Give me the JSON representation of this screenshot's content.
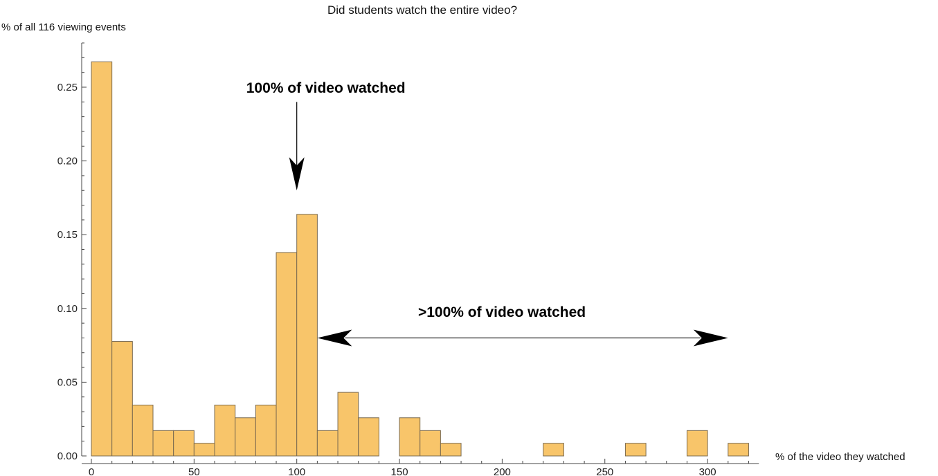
{
  "chart_data": {
    "type": "bar",
    "title": "Did students watch the entire video?",
    "xlabel": "% of the video they watched",
    "ylabel": "% of all 116 viewing events",
    "xlim": [
      -5,
      325
    ],
    "ylim": [
      0,
      0.28
    ],
    "x_ticks": [
      0,
      50,
      100,
      150,
      200,
      250,
      300
    ],
    "y_ticks": [
      0.0,
      0.05,
      0.1,
      0.15,
      0.2,
      0.25
    ],
    "y_tick_labels": [
      "0.00",
      "0.05",
      "0.10",
      "0.15",
      "0.20",
      "0.25"
    ],
    "grid": false,
    "bar_color": "#F8C56A",
    "bar_edge_color": "#7a6a50",
    "bin_width": 10,
    "bins": [
      {
        "start": 0,
        "value": 0.2672
      },
      {
        "start": 10,
        "value": 0.0776
      },
      {
        "start": 20,
        "value": 0.0345
      },
      {
        "start": 30,
        "value": 0.0172
      },
      {
        "start": 40,
        "value": 0.0172
      },
      {
        "start": 50,
        "value": 0.0086
      },
      {
        "start": 60,
        "value": 0.0345
      },
      {
        "start": 70,
        "value": 0.0259
      },
      {
        "start": 80,
        "value": 0.0345
      },
      {
        "start": 90,
        "value": 0.1379
      },
      {
        "start": 100,
        "value": 0.1638
      },
      {
        "start": 110,
        "value": 0.0172
      },
      {
        "start": 120,
        "value": 0.0431
      },
      {
        "start": 130,
        "value": 0.0259
      },
      {
        "start": 150,
        "value": 0.0259
      },
      {
        "start": 160,
        "value": 0.0172
      },
      {
        "start": 170,
        "value": 0.0086
      },
      {
        "start": 220,
        "value": 0.0086
      },
      {
        "start": 260,
        "value": 0.0086
      },
      {
        "start": 290,
        "value": 0.0172
      },
      {
        "start": 310,
        "value": 0.0086
      }
    ],
    "annotations": [
      {
        "text": "100% of video watched",
        "arrow": "down",
        "x": 100,
        "y_from": 0.24,
        "y_to": 0.18,
        "text_y": 0.25
      },
      {
        "text": ">100% of video watched",
        "arrow": "both",
        "x_from": 110,
        "x_to": 310,
        "y": 0.08,
        "text_y": 0.098
      }
    ]
  }
}
